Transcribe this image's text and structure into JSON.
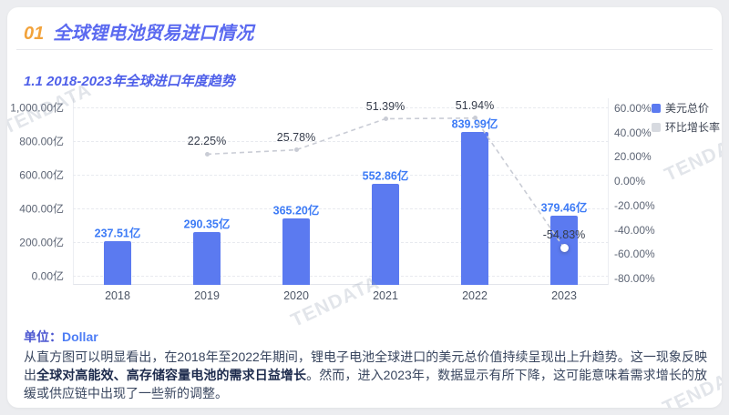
{
  "header": {
    "number": "01",
    "title": "全球锂电池贸易进口情况"
  },
  "subtitle": "1.1 2018-2023年全球进口年度趋势",
  "watermark": "TENDATA",
  "footer": {
    "unit_label": "单位：",
    "unit_value": "Dollar",
    "para_1": "从直方图可以明显看出，在2018年至2022年期间，锂电子电池全球进口的美元总价值持续呈现出上升趋势。这一现象反映出",
    "para_bold": "全球对高能效、高存储容量电池的需求日益增长",
    "para_2": "。然而，进入2023年，数据显示有所下降，这可能意味着需求增长的放缓或供应链中出现了一些新的调整。"
  },
  "colors": {
    "accent_orange": "#f2a33c",
    "title_blue": "#5b6af0",
    "bar_blue": "#5b7af0",
    "bar_label_blue": "#3d7bf6",
    "line_gray": "#c9ccd5",
    "legend_gray": "#d7dae0"
  },
  "chart_data": {
    "type": "bar",
    "title": "1.1 2018-2023年全球进口年度趋势",
    "categories": [
      "2018",
      "2019",
      "2020",
      "2021",
      "2022",
      "2023"
    ],
    "series": [
      {
        "name": "美元总价",
        "type": "bar",
        "axis": "left",
        "unit": "亿",
        "values": [
          237.51,
          290.35,
          365.2,
          552.86,
          839.99,
          379.46
        ],
        "labels": [
          "237.51亿",
          "290.35亿",
          "365.20亿",
          "552.86亿",
          "839.99亿",
          "379.46亿"
        ],
        "color": "#5b7af0"
      },
      {
        "name": "环比增长率",
        "type": "line",
        "axis": "right",
        "unit": "%",
        "values": [
          null,
          22.25,
          25.78,
          51.39,
          51.94,
          -54.83
        ],
        "labels": [
          null,
          "22.25%",
          "25.78%",
          "51.39%",
          "51.94%",
          "-54.83%"
        ],
        "color": "#c9ccd5",
        "style": "dashed"
      }
    ],
    "left_axis": {
      "min": 0,
      "max": 1000,
      "interval": 200,
      "tick_labels": [
        "1,000.00亿",
        "800.00亿",
        "600.00亿",
        "400.00亿",
        "200.00亿",
        "0.00亿"
      ]
    },
    "right_axis": {
      "min": -80,
      "max": 60,
      "interval": 20,
      "tick_labels": [
        "60.00%",
        "40.00%",
        "20.00%",
        "0.00%",
        "-20.00%",
        "-40.00%",
        "-60.00%",
        "-80.00%"
      ]
    },
    "legend": [
      {
        "label": "美元总价",
        "color": "#5b7af0"
      },
      {
        "label": "环比增长率",
        "color": "#d7dae0"
      }
    ],
    "legend_position": "top-right",
    "grid": true
  }
}
